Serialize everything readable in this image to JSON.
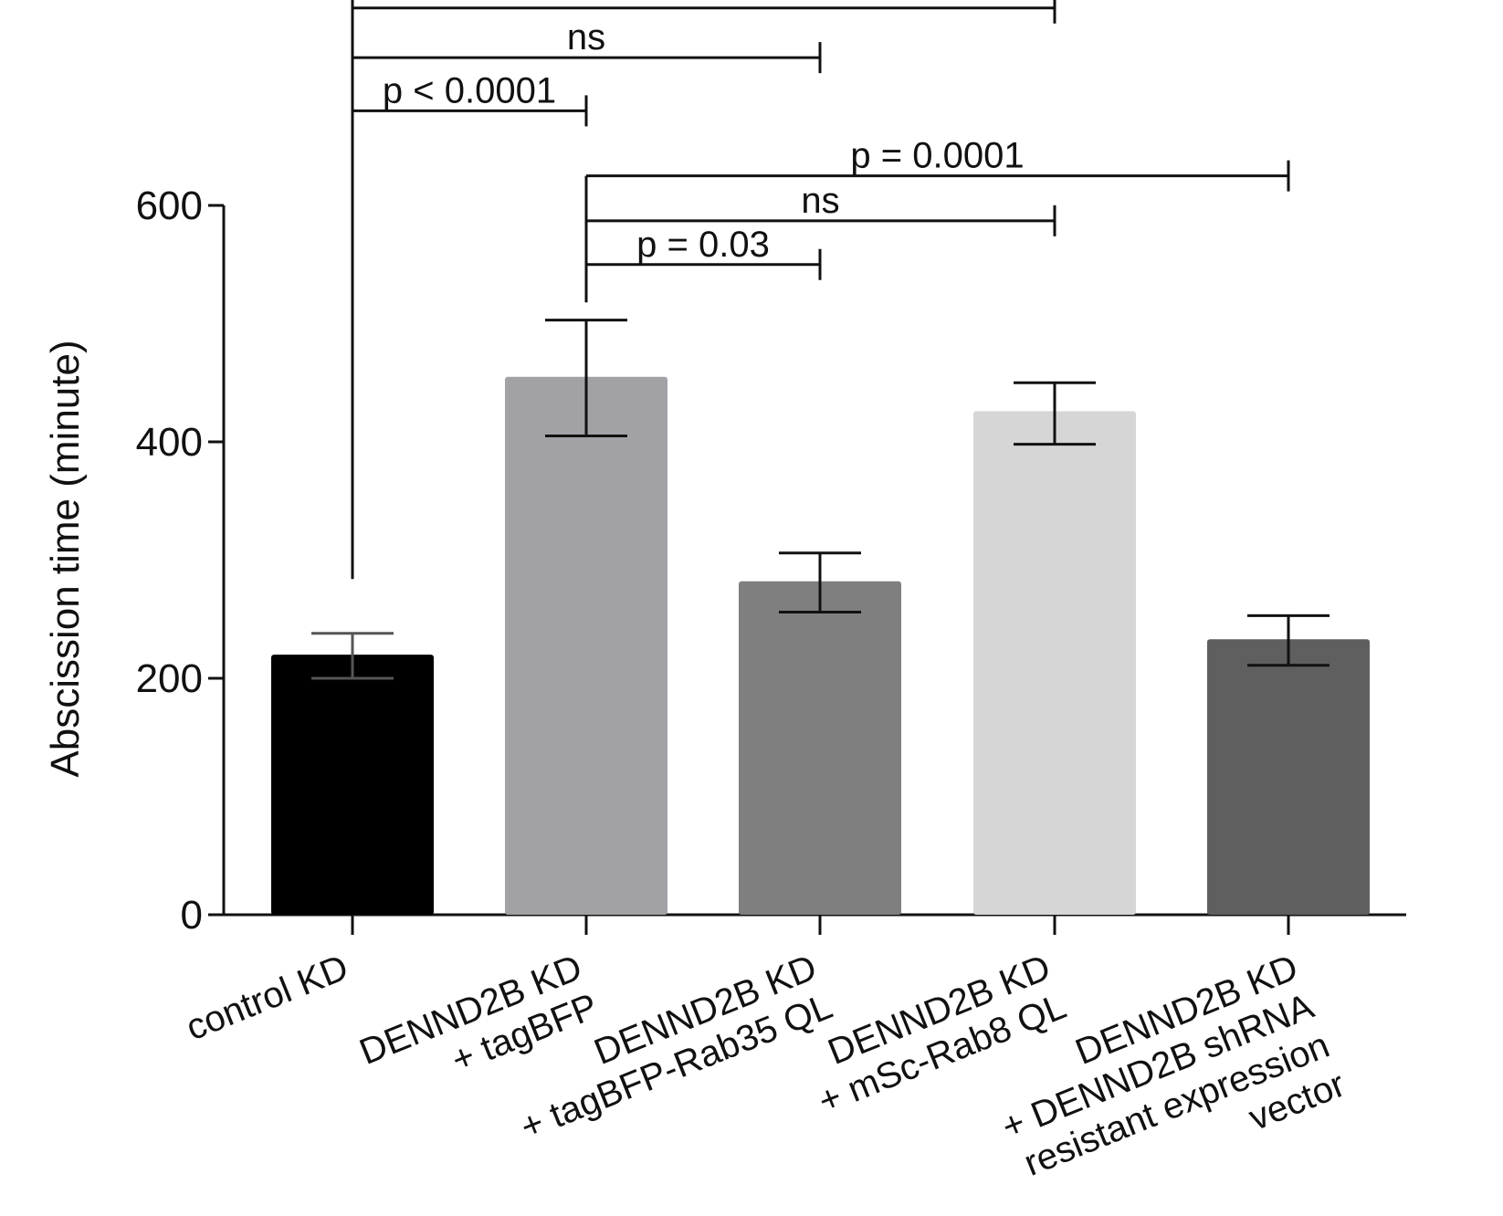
{
  "chart_data": {
    "type": "bar",
    "title": "",
    "xlabel": "",
    "ylabel": "Abscission time (minute)",
    "ylim": [
      0,
      600
    ],
    "yticks": [
      0,
      200,
      400,
      600
    ],
    "grid": false,
    "categories": [
      [
        "control KD"
      ],
      [
        "DENND2B KD",
        "+ tagBFP"
      ],
      [
        "DENND2B KD",
        "+ tagBFP-Rab35 QL"
      ],
      [
        "DENND2B KD",
        "+ mSc-Rab8 QL"
      ],
      [
        "DENND2B KD",
        "+ DENND2B shRNA",
        "resistant expression",
        "vector"
      ]
    ],
    "values": [
      220,
      455,
      282,
      426,
      233
    ],
    "error_low": [
      200,
      405,
      256,
      398,
      211
    ],
    "error_high": [
      238,
      503,
      306,
      450,
      253
    ],
    "colors": [
      "#000000",
      "#a2a2a6",
      "#7f7f7f",
      "#d6d6d6",
      "#5f5f5f"
    ],
    "comparisons": [
      {
        "from": 0,
        "to": 3,
        "label": "",
        "y_value": 767
      },
      {
        "from": 0,
        "to": 2,
        "label": "ns",
        "y_value": 725
      },
      {
        "from": 0,
        "to": 1,
        "label": "p < 0.0001",
        "y_value": 680
      },
      {
        "from": 1,
        "to": 4,
        "label": "p = 0.0001",
        "y_value": 625
      },
      {
        "from": 1,
        "to": 3,
        "label": "ns",
        "y_value": 587
      },
      {
        "from": 1,
        "to": 2,
        "label": "p = 0.03",
        "y_value": 550
      }
    ],
    "comparison_stems": [
      {
        "category": 0,
        "bottom_value": 284,
        "top_value": 790
      },
      {
        "category": 1,
        "bottom_value": 518,
        "top_value": 625
      }
    ]
  }
}
